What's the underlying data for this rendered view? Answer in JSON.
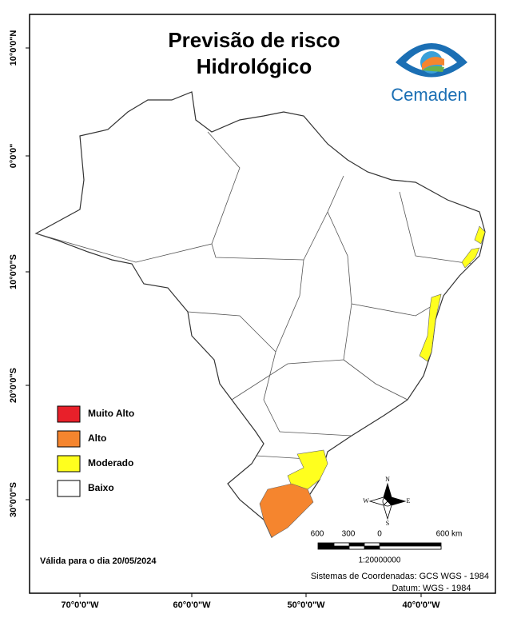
{
  "header": {
    "title_lines": [
      "Previsão de risco",
      "Hidrológico"
    ],
    "logo_text": "Cemaden"
  },
  "latitude_labels": [
    "10°0'0\"N",
    "0°0'0\"",
    "10°0'0\"S",
    "20°0'0\"S",
    "30°0'0\"S"
  ],
  "longitude_labels": [
    "70°0'0\"W",
    "60°0'0\"W",
    "50°0'0\"W",
    "40°0'0\"W"
  ],
  "legend": [
    {
      "label": "Muito Alto",
      "color": "#e8202a"
    },
    {
      "label": "Alto",
      "color": "#f5852e"
    },
    {
      "label": "Moderado",
      "color": "#ffff1e"
    },
    {
      "label": "Baixo",
      "color": "#ffffff"
    }
  ],
  "compass": {
    "north": "N",
    "south": "S",
    "east": "E",
    "west": "W"
  },
  "scale": {
    "labels": [
      "600",
      "300",
      "0",
      "600 km"
    ],
    "ratio": "1:20000000"
  },
  "validity": "Válida para o dia 20/05/2024",
  "footer": [
    "Sistemas de Coordenadas: GCS WGS - 1984",
    "Datum: WGS - 1984"
  ]
}
